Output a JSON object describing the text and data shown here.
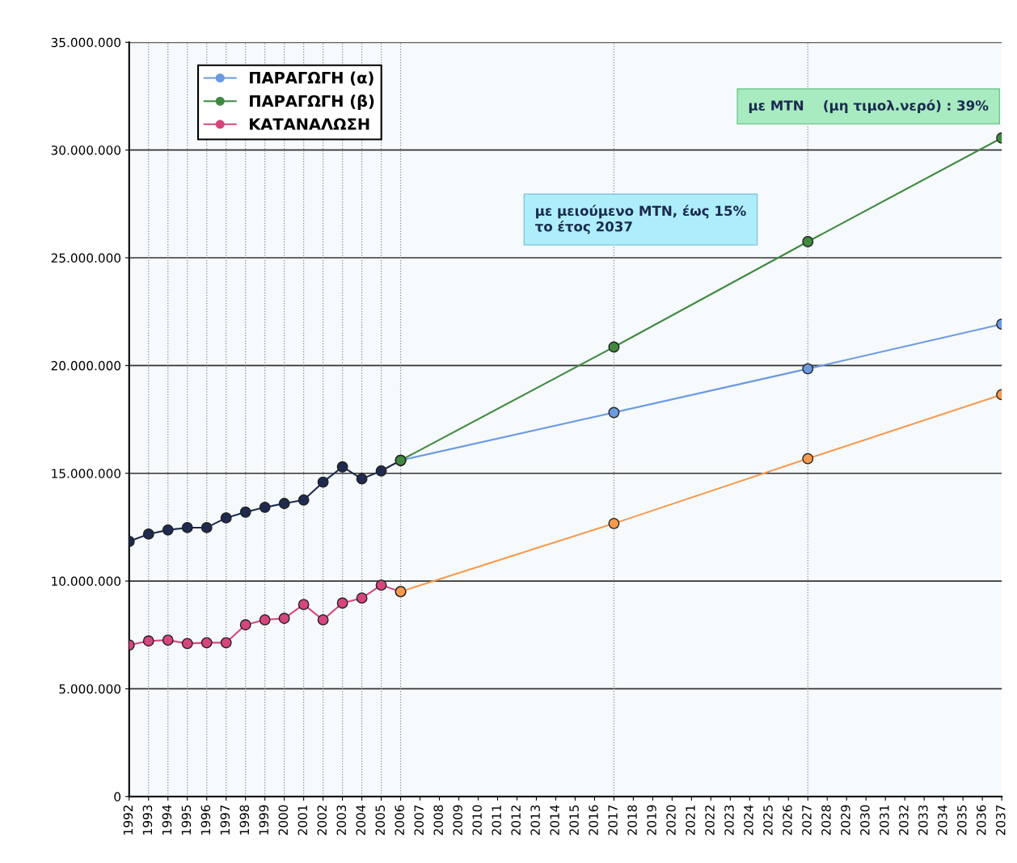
{
  "chart_data": {
    "type": "line",
    "series": [
      {
        "color": "#1f2a4f",
        "x": [
          1992,
          1993,
          1994,
          1995,
          1996,
          1997,
          1998,
          1999,
          2000,
          2001,
          2002,
          2003,
          2004,
          2005,
          2006
        ],
        "values": [
          11840000,
          12180000,
          12370000,
          12480000,
          12480000,
          12930000,
          13200000,
          13420000,
          13600000,
          13760000,
          14590000,
          15300000,
          14740000,
          15110000,
          15600000
        ]
      },
      {
        "name": "ΠΑΡΑΓΩΓΗ (α)",
        "color": "#6a9ae0",
        "x": [
          2006,
          2017,
          2027,
          2037
        ],
        "values": [
          15600000,
          17820000,
          19850000,
          21920000
        ]
      },
      {
        "name": "ΠΑΡΑΓΩΓΗ (β)",
        "color": "#3f8a3f",
        "x": [
          2006,
          2017,
          2027,
          2037
        ],
        "values": [
          15600000,
          20860000,
          25750000,
          30560000
        ]
      },
      {
        "name": "ΚΑΤΑΝΑΛΩΣΗ",
        "color": "#d6467e",
        "x": [
          1992,
          1993,
          1994,
          1995,
          1996,
          1997,
          1998,
          1999,
          2000,
          2001,
          2002,
          2003,
          2004,
          2005,
          2006
        ],
        "values": [
          7030000,
          7220000,
          7260000,
          7100000,
          7140000,
          7140000,
          7970000,
          8200000,
          8270000,
          8910000,
          8200000,
          8980000,
          9210000,
          9810000,
          9510000
        ]
      },
      {
        "color": "#f79a4f",
        "x": [
          2006,
          2017,
          2027,
          2037
        ],
        "values": [
          9510000,
          12670000,
          15680000,
          18650000
        ]
      }
    ],
    "xlim": [
      1992,
      2037
    ],
    "xticks": [
      1992,
      1993,
      1994,
      1995,
      1996,
      1997,
      1998,
      1999,
      2000,
      2001,
      2002,
      2003,
      2004,
      2005,
      2006,
      2007,
      2008,
      2009,
      2010,
      2011,
      2012,
      2013,
      2014,
      2015,
      2016,
      2017,
      2018,
      2019,
      2020,
      2021,
      2022,
      2023,
      2024,
      2025,
      2026,
      2027,
      2028,
      2029,
      2030,
      2031,
      2032,
      2033,
      2034,
      2035,
      2036,
      2037
    ],
    "ylim": [
      0,
      35000000
    ],
    "yticks": [
      {
        "value": 0,
        "label": "0"
      },
      {
        "value": 5000000,
        "label": "5.000.000"
      },
      {
        "value": 10000000,
        "label": "10.000.000"
      },
      {
        "value": 15000000,
        "label": "15.000.000"
      },
      {
        "value": 20000000,
        "label": "20.000.000"
      },
      {
        "value": 25000000,
        "label": "25.000.000"
      },
      {
        "value": 30000000,
        "label": "30.000.000"
      },
      {
        "value": 35000000,
        "label": "35.000.000"
      }
    ],
    "grid": "y",
    "legend": "top left",
    "marker": "circle",
    "line_style": "solid",
    "ref_lines": [
      {
        "axis": "x",
        "value": 1993,
        "color": "#888888",
        "line_style": "dotted"
      },
      {
        "axis": "x",
        "value": 1994,
        "color": "#888888",
        "line_style": "dotted"
      },
      {
        "axis": "x",
        "value": 1995,
        "color": "#888888",
        "line_style": "dotted"
      },
      {
        "axis": "x",
        "value": 1996,
        "color": "#888888",
        "line_style": "dotted"
      },
      {
        "axis": "x",
        "value": 1997,
        "color": "#888888",
        "line_style": "dotted"
      },
      {
        "axis": "x",
        "value": 1998,
        "color": "#888888",
        "line_style": "dotted"
      },
      {
        "axis": "x",
        "value": 1999,
        "color": "#888888",
        "line_style": "dotted"
      },
      {
        "axis": "x",
        "value": 2000,
        "color": "#888888",
        "line_style": "dotted"
      },
      {
        "axis": "x",
        "value": 2001,
        "color": "#888888",
        "line_style": "dotted"
      },
      {
        "axis": "x",
        "value": 2002,
        "color": "#888888",
        "line_style": "dotted"
      },
      {
        "axis": "x",
        "value": 2003,
        "color": "#888888",
        "line_style": "dotted"
      },
      {
        "axis": "x",
        "value": 2004,
        "color": "#888888",
        "line_style": "dotted"
      },
      {
        "axis": "x",
        "value": 2005,
        "color": "#888888",
        "line_style": "dotted"
      },
      {
        "axis": "x",
        "value": 2006,
        "color": "#888888",
        "line_style": "dotted"
      },
      {
        "axis": "x",
        "value": 2017,
        "color": "#888888",
        "line_style": "dotted"
      },
      {
        "axis": "x",
        "value": 2027,
        "color": "#888888",
        "line_style": "dotted"
      }
    ],
    "annotations": [
      "με μειούμενο ΜΤΝ, έως 15%\nτο έτος 2037",
      "με ΜΤΝ    (μη τιμολ.νερό) : 39%"
    ]
  }
}
